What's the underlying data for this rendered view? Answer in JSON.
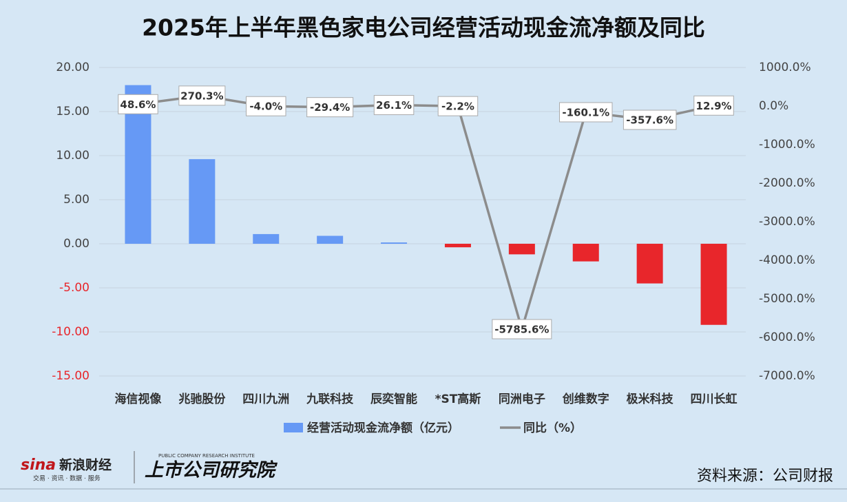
{
  "chart_data": {
    "type": "bar_line",
    "title": "2025年上半年黑色家电公司经营活动现金流净额及同比",
    "categories": [
      "海信视像",
      "兆驰股份",
      "四川九洲",
      "九联科技",
      "辰奕智能",
      "*ST高斯",
      "同洲电子",
      "创维数字",
      "极米科技",
      "四川长虹"
    ],
    "series": [
      {
        "name": "经营活动现金流净额（亿元）",
        "type": "bar",
        "color": "#6699f5",
        "negative_color": "#e8262b",
        "values": [
          18.0,
          9.6,
          1.1,
          0.9,
          0.15,
          -0.4,
          -1.2,
          -2.0,
          -4.5,
          -9.2
        ]
      },
      {
        "name": "同比（%）",
        "type": "line",
        "axis": "y2",
        "color": "#8c8c8c",
        "values": [
          48.6,
          270.3,
          -4.0,
          -29.4,
          26.1,
          -2.2,
          -5785.6,
          -160.1,
          -357.6,
          12.9
        ],
        "value_labels": [
          "48.6%",
          "270.3%",
          "-4.0%",
          "-29.4%",
          "26.1%",
          "-2.2%",
          "-5785.6%",
          "-160.1%",
          "-357.6%",
          "12.9%"
        ]
      }
    ],
    "ylim": [
      -15,
      20
    ],
    "yticks": [
      {
        "value": 20,
        "label": "20.00"
      },
      {
        "value": 15,
        "label": "15.00"
      },
      {
        "value": 10,
        "label": "10.00"
      },
      {
        "value": 5,
        "label": "5.00"
      },
      {
        "value": 0,
        "label": "0.00"
      },
      {
        "value": -5,
        "label": "-5.00"
      },
      {
        "value": -10,
        "label": "-10.00"
      },
      {
        "value": -15,
        "label": "-15.00"
      }
    ],
    "y2lim": [
      -7000,
      1000
    ],
    "y2ticks": [
      {
        "value": 1000,
        "label": "1000.0%"
      },
      {
        "value": 0,
        "label": "0.0%"
      },
      {
        "value": -1000,
        "label": "-1000.0%"
      },
      {
        "value": -2000,
        "label": "-2000.0%"
      },
      {
        "value": -3000,
        "label": "-3000.0%"
      },
      {
        "value": -4000,
        "label": "-4000.0%"
      },
      {
        "value": -5000,
        "label": "-5000.0%"
      },
      {
        "value": -6000,
        "label": "-6000.0%"
      },
      {
        "value": -7000,
        "label": "-7000.0%"
      }
    ],
    "grid": true,
    "negative_tick_color": "#e8262b",
    "legend": "bottom"
  },
  "footer": {
    "brand": "新浪财经",
    "brand_tagline": "交易 · 资讯 · 数据 · 服务",
    "institute": "上市公司研究院",
    "institute_en": "PUBLIC COMPANY RESEARCH INSTITUTE",
    "source": "资料来源：公司财报"
  }
}
